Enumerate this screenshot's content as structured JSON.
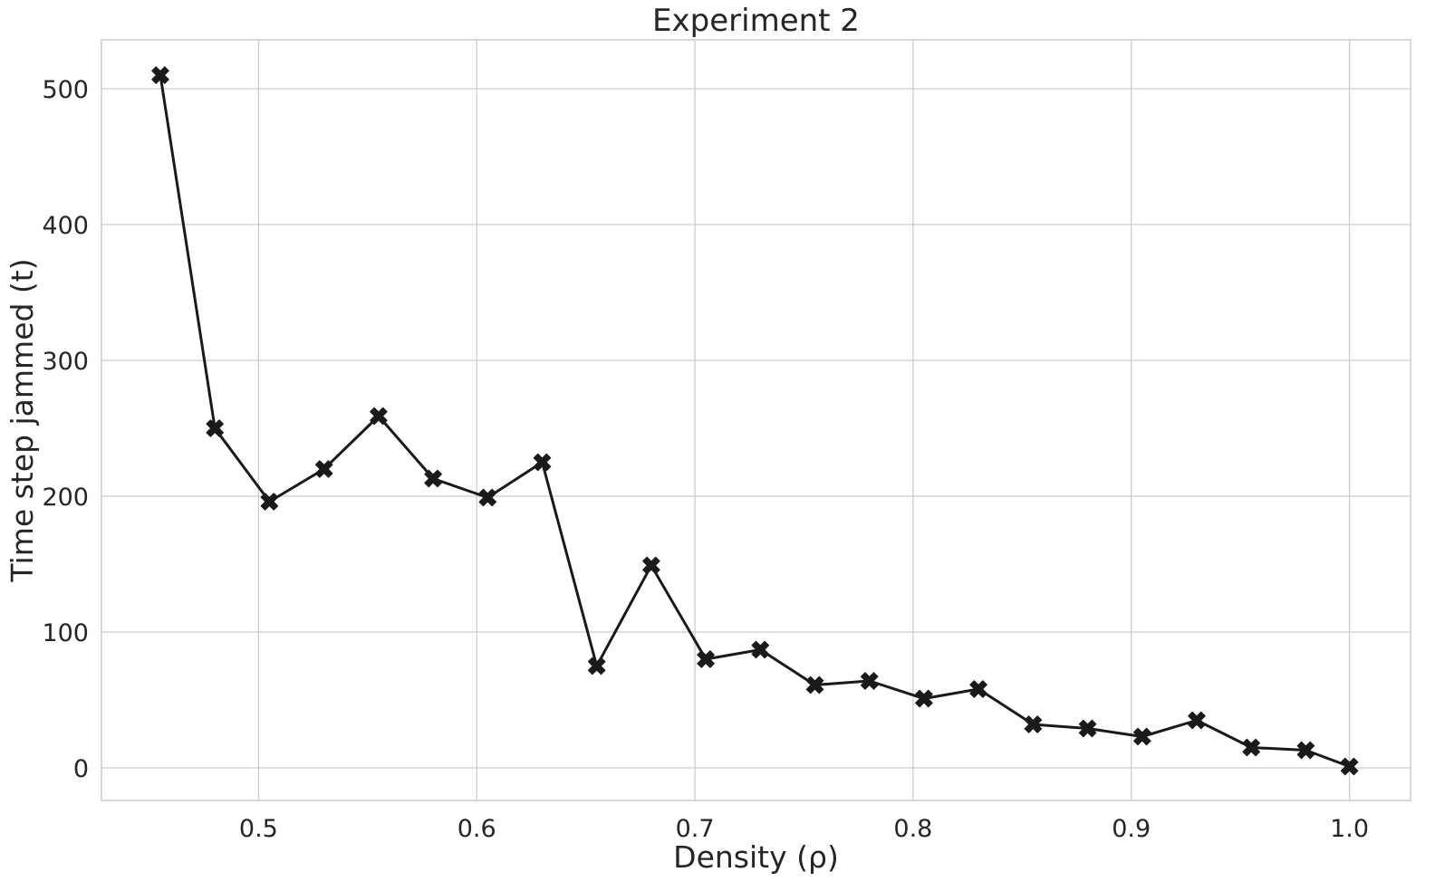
{
  "chart_data": {
    "type": "line",
    "title": "Experiment 2",
    "xlabel": "Density (ρ)",
    "ylabel": "Time step jammed (t)",
    "xlim": [
      0.428,
      1.028
    ],
    "ylim": [
      -24,
      536
    ],
    "xticks": [
      0.5,
      0.6,
      0.7,
      0.8,
      0.9,
      1.0
    ],
    "xtick_labels": [
      "0.5",
      "0.6",
      "0.7",
      "0.8",
      "0.9",
      "1.0"
    ],
    "yticks": [
      0,
      100,
      200,
      300,
      400,
      500
    ],
    "ytick_labels": [
      "0",
      "100",
      "200",
      "300",
      "400",
      "500"
    ],
    "grid": true,
    "legend": "none",
    "series": [
      {
        "marker": "X",
        "color": "#1a1a1a",
        "x": [
          0.455,
          0.48,
          0.505,
          0.53,
          0.555,
          0.58,
          0.605,
          0.63,
          0.655,
          0.68,
          0.705,
          0.73,
          0.755,
          0.78,
          0.805,
          0.83,
          0.855,
          0.88,
          0.905,
          0.93,
          0.955,
          0.98,
          1.0
        ],
        "y": [
          510,
          250,
          196,
          220,
          259,
          213,
          199,
          225,
          75,
          149,
          80,
          87,
          61,
          64,
          51,
          58,
          32,
          29,
          23,
          35,
          15,
          13,
          1
        ]
      }
    ]
  }
}
